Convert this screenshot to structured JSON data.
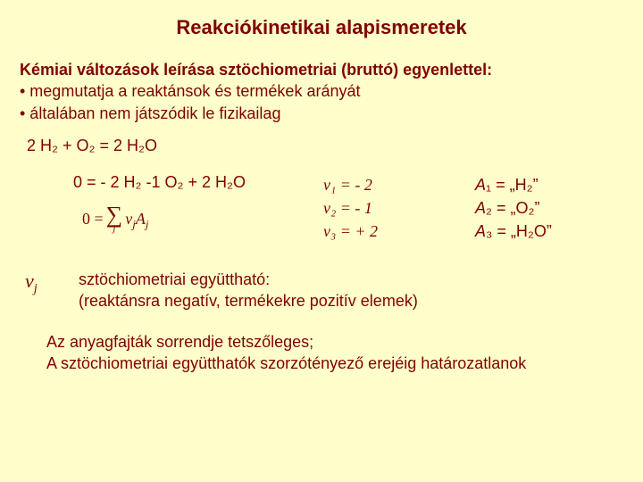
{
  "colors": {
    "background": "#ffffcc",
    "text": "#800000"
  },
  "title": "Reakciókinetikai alapismeretek",
  "intro": {
    "line1_prefix": "Kémiai változások leírása ",
    "line1_bold": "sztöchiometriai (bruttó) egyenlettel:",
    "bullet1": "• megmutatja a reaktánsok és termékek arányát",
    "bullet2": "• általában nem játszódik le fizikailag"
  },
  "reaction_eq": "2 H₂ + O₂ = 2 H₂O",
  "zero_eq": "0 =  - 2 H₂ -1 O₂ + 2 H₂O",
  "sum_eq": {
    "lhs": "0 = ",
    "under": "j",
    "term_nu": "ν",
    "term_nu_sub": "j",
    "term_A": "A",
    "term_A_sub": "j"
  },
  "nu_rows": [
    "ν₁ = - 2",
    "ν₂ = - 1",
    "ν₃ = + 2"
  ],
  "A_rows": [
    "A₁ = „H₂”",
    "A₂ = „O₂”",
    "A₃ = „H₂O”"
  ],
  "nuj_symbol": "ν",
  "nuj_sub": "j",
  "stoich_lines": [
    "sztöchiometriai együttható:",
    "(reaktánsra negatív, termékekre pozitív elemek)"
  ],
  "closing_lines": [
    "Az anyagfajták sorrendje tetszőleges;",
    "A sztöchiometriai együtthatók szorzótényező erejéig határozatlanok"
  ]
}
